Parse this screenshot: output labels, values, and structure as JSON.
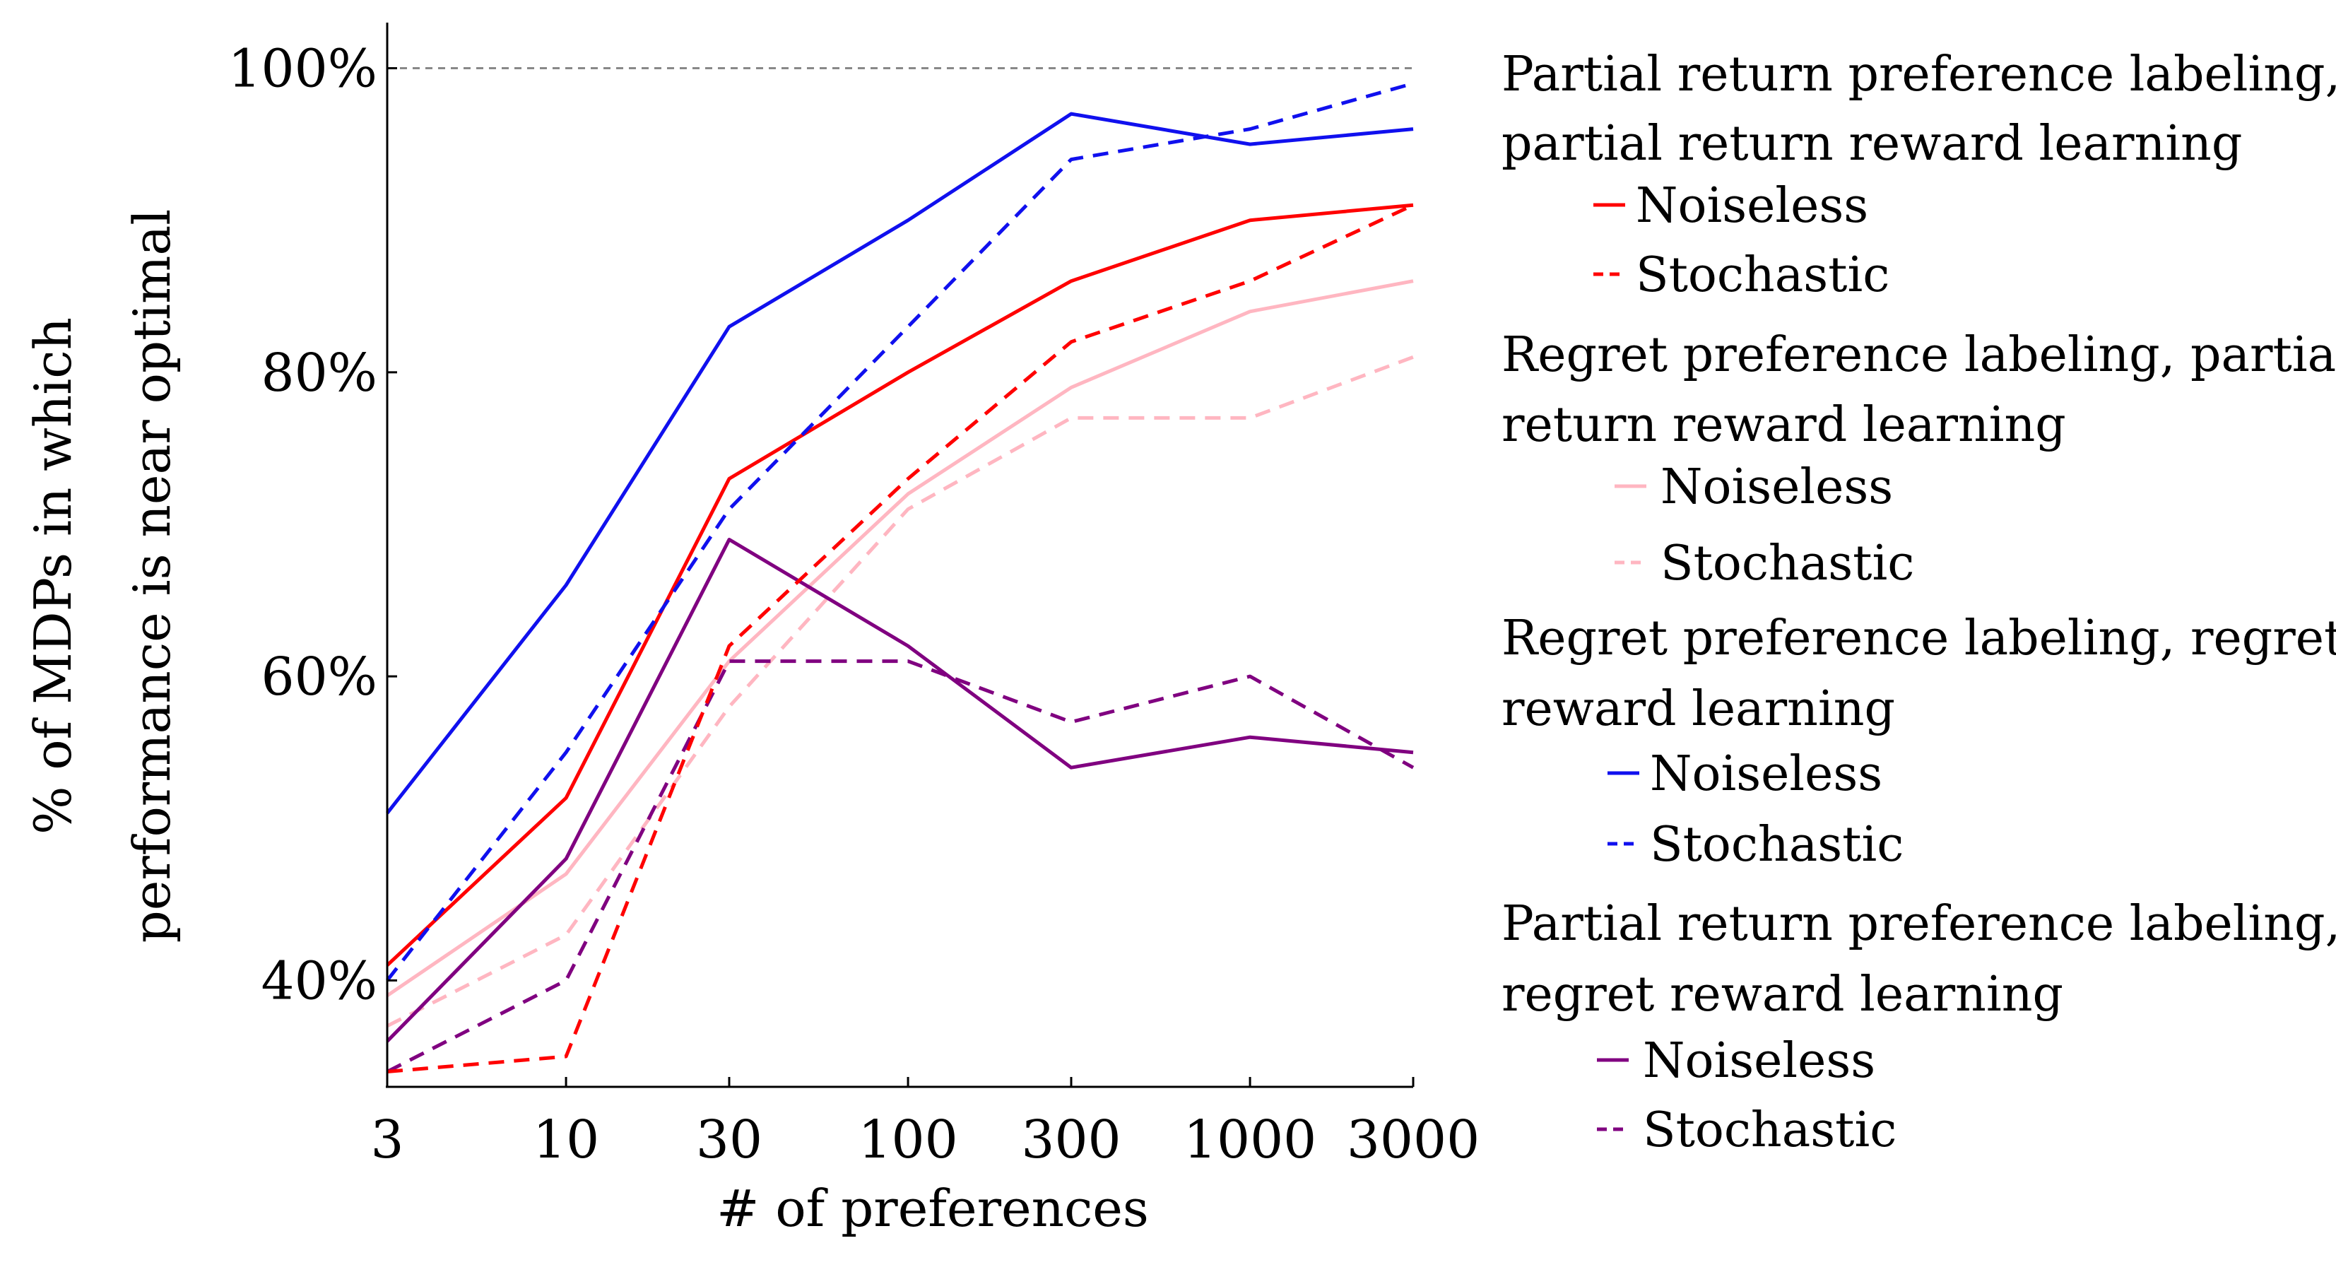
{
  "chart_data": {
    "type": "line",
    "xlabel": "# of preferences",
    "ylabel_lines": [
      "% of MDPs in which",
      "performance is near optimal"
    ],
    "x": [
      3,
      10,
      30,
      100,
      300,
      1000,
      3000
    ],
    "x_tick_labels": [
      "3",
      "10",
      "30",
      "100",
      "300",
      "1000",
      "3000"
    ],
    "y_ticks": [
      40,
      60,
      80,
      100
    ],
    "y_tick_labels": [
      "40%",
      "60%",
      "80%",
      "100%"
    ],
    "ylim": [
      33,
      103
    ],
    "reference_line": 100,
    "grid": false,
    "legend_position": "right",
    "groups": [
      {
        "title_lines": [
          "Partial return preference labeling,",
          "partial return reward learning"
        ],
        "color": "#ff0000",
        "series": [
          {
            "name": "Noiseless",
            "style": "solid",
            "values": [
              41,
              52,
              73,
              80,
              86,
              90,
              91
            ]
          },
          {
            "name": "Stochastic",
            "style": "dashed",
            "values": [
              34,
              35,
              62,
              73,
              82,
              86,
              91
            ]
          }
        ]
      },
      {
        "title_lines": [
          "Regret preference labeling, partial",
          "return reward learning"
        ],
        "color": "#ffb6c1",
        "series": [
          {
            "name": "Noiseless",
            "style": "solid",
            "values": [
              39,
              47,
              61,
              72,
              79,
              84,
              86
            ]
          },
          {
            "name": "Stochastic",
            "style": "dashed",
            "values": [
              37,
              43,
              58,
              71,
              77,
              77,
              81
            ]
          }
        ]
      },
      {
        "title_lines": [
          "Regret preference labeling, regret",
          "reward learning"
        ],
        "color": "#1010ee",
        "series": [
          {
            "name": "Noiseless",
            "style": "solid",
            "values": [
              51,
              66,
              83,
              90,
              97,
              95,
              96
            ]
          },
          {
            "name": "Stochastic",
            "style": "dashed",
            "values": [
              40,
              55,
              71,
              83,
              94,
              96,
              99
            ]
          }
        ]
      },
      {
        "title_lines": [
          "Partial return preference labeling,",
          "regret reward learning"
        ],
        "color": "#800080",
        "series": [
          {
            "name": "Noiseless",
            "style": "solid",
            "values": [
              36,
              48,
              69,
              62,
              54,
              56,
              55
            ]
          },
          {
            "name": "Stochastic",
            "style": "dashed",
            "values": [
              34,
              40,
              61,
              61,
              57,
              60,
              54
            ]
          }
        ]
      }
    ]
  }
}
